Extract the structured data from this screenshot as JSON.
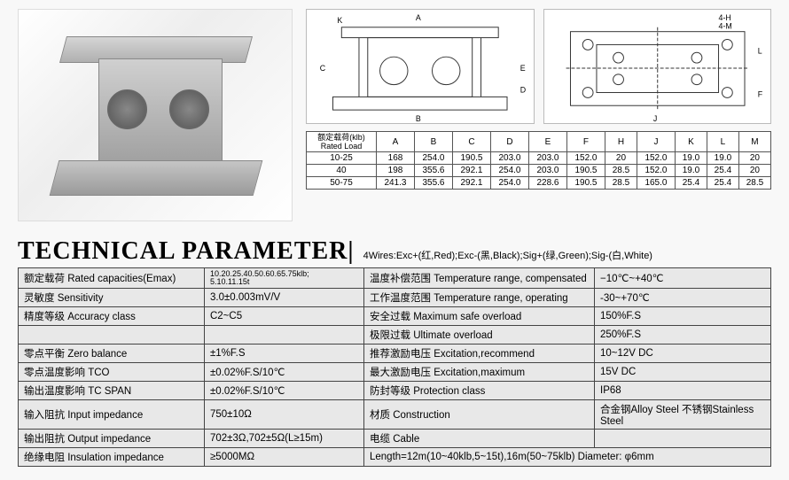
{
  "title": "TECHNICAL PARAMETER|",
  "wires_text": "4Wires:Exc+(红,Red);Exc-(黑,Black);Sig+(绿,Green);Sig-(白,White)",
  "dim_table": {
    "header_rated_cn": "额定载荷(klb)",
    "header_rated_en": "Rated Load",
    "columns": [
      "A",
      "B",
      "C",
      "D",
      "E",
      "F",
      "H",
      "J",
      "K",
      "L",
      "M"
    ],
    "rows": [
      {
        "load": "10-25",
        "vals": [
          "168",
          "254.0",
          "190.5",
          "203.0",
          "203.0",
          "152.0",
          "20",
          "152.0",
          "19.0",
          "19.0",
          "20"
        ]
      },
      {
        "load": "40",
        "vals": [
          "198",
          "355.6",
          "292.1",
          "254.0",
          "203.0",
          "190.5",
          "28.5",
          "152.0",
          "19.0",
          "25.4",
          "20"
        ]
      },
      {
        "load": "50-75",
        "vals": [
          "241.3",
          "355.6",
          "292.1",
          "254.0",
          "228.6",
          "190.5",
          "28.5",
          "165.0",
          "25.4",
          "25.4",
          "28.5"
        ]
      }
    ]
  },
  "params_left": [
    {
      "label": "额定载荷  Rated capacities(Emax)",
      "value": "10.20.25.40.50.60.65.75klb;\n5.10.11.15t",
      "small": true
    },
    {
      "label": "灵敏度  Sensitivity",
      "value": "3.0±0.003mV/V"
    },
    {
      "label": "精度等级  Accuracy class",
      "value": "C2~C5"
    },
    {
      "label": "",
      "value": ""
    },
    {
      "label": "零点平衡 Zero balance",
      "value": "±1%F.S"
    },
    {
      "label": "零点温度影响 TCO",
      "value": "±0.02%F.S/10℃"
    },
    {
      "label": "输出温度影响 TC SPAN",
      "value": "±0.02%F.S/10℃"
    },
    {
      "label": "输入阻抗 Input  impedance",
      "value": "750±10Ω"
    },
    {
      "label": "输出阻抗 Output  impedance",
      "value": "702±3Ω,702±5Ω(L≥15m)"
    },
    {
      "label": "绝缘电阻  Insulation impedance",
      "value": "≥5000MΩ"
    }
  ],
  "params_right": [
    {
      "label": "温度补偿范围 Temperature range, compensated",
      "value": "−10℃~+40℃"
    },
    {
      "label": "工作温度范围 Temperature range, operating",
      "value": "-30~+70℃"
    },
    {
      "label": "安全过载  Maximum safe overload",
      "value": "150%F.S"
    },
    {
      "label": "极限过载  Ultimate overload",
      "value": "250%F.S"
    },
    {
      "label": "推荐激励电压 Excitation,recommend",
      "value": "10~12V DC"
    },
    {
      "label": "最大激励电压 Excitation,maximum",
      "value": "15V DC"
    },
    {
      "label": "防封等级  Protection class",
      "value": "IP68"
    },
    {
      "label": "材质 Construction",
      "value": "合金钢Alloy Steel 不锈钢Stainless Steel"
    },
    {
      "label": "电缆 Cable",
      "value": ""
    },
    {
      "label": "Length=12m(10~40klb,5~15t),16m(50~75klb)   Diameter: φ6mm",
      "value": "",
      "full": true
    }
  ],
  "dwg_labels": {
    "front": [
      "K",
      "A",
      "B",
      "C",
      "E",
      "D"
    ],
    "top": [
      "4-H",
      "4-M",
      "J",
      "L",
      "F"
    ]
  },
  "colors": {
    "bg": "#f8f8f8",
    "row_bg": "#e8e8e8",
    "border": "#444444"
  }
}
